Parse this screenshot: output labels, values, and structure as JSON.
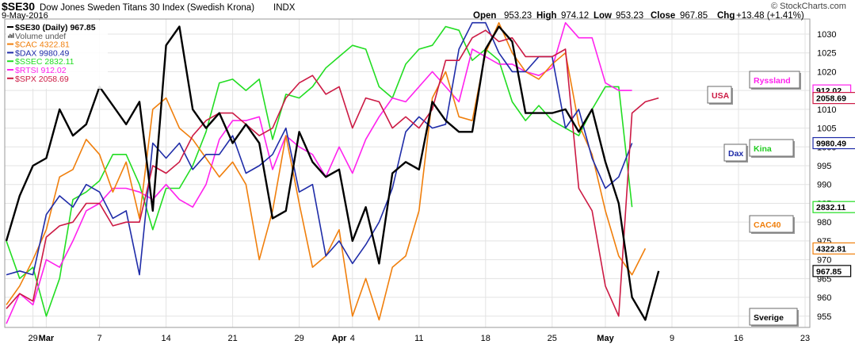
{
  "header": {
    "symbol": "$SE30",
    "name": "Dow Jones Sweden Titans 30 Index (Swedish Krona)",
    "exchange": "INDX",
    "date": "9-May-2016",
    "watermark": "© StockCharts.com",
    "open_label": "Open",
    "open": "953.23",
    "high_label": "High",
    "high": "974.12",
    "low_label": "Low",
    "low": "953.23",
    "close_label": "Close",
    "close": "967.85",
    "chg_label": "Chg",
    "chg": "+13.48 (+1.41%)"
  },
  "chart_data": {
    "type": "line",
    "ylim": [
      952,
      1034
    ],
    "yticks": [
      955,
      960,
      965,
      970,
      975,
      980,
      985,
      990,
      995,
      1000,
      1005,
      1010,
      1015,
      1020,
      1025,
      1030
    ],
    "x_count": 64,
    "x_ticks": [
      {
        "i": 2,
        "label": "29"
      },
      {
        "i": 3,
        "label": "Mar",
        "bold": true
      },
      {
        "i": 7,
        "label": "7"
      },
      {
        "i": 12,
        "label": "14"
      },
      {
        "i": 17,
        "label": "21"
      },
      {
        "i": 22,
        "label": "29"
      },
      {
        "i": 25,
        "label": "Apr",
        "bold": true
      },
      {
        "i": 26,
        "label": "4"
      },
      {
        "i": 31,
        "label": "11"
      },
      {
        "i": 36,
        "label": "18"
      },
      {
        "i": 41,
        "label": "25"
      },
      {
        "i": 45,
        "label": "May",
        "bold": true
      },
      {
        "i": 50,
        "label": "9"
      },
      {
        "i": 55,
        "label": "16"
      },
      {
        "i": 60,
        "label": "23"
      }
    ],
    "series": [
      {
        "name": "$SE30 (Daily) 967.85",
        "color": "#000000",
        "tag": "967.85",
        "width": 2.4,
        "values": [
          975,
          987,
          995,
          997,
          1010,
          1003,
          1006,
          1016,
          1011,
          1006,
          1012,
          983,
          1027,
          1032,
          1010,
          1005,
          1009,
          1001,
          1006,
          1001,
          981,
          983,
          1004,
          996,
          992,
          994,
          975,
          984,
          969,
          993,
          996,
          994,
          1012,
          1007,
          1004,
          1004,
          1026,
          1032,
          1028,
          1009,
          1009,
          1009,
          1010,
          1004,
          1010,
          996,
          985,
          960,
          954,
          967
        ]
      },
      {
        "name": "Volume undef",
        "color": "#555555",
        "icon": "volume-bars"
      },
      {
        "name": "$CAC 4322.81",
        "color": "#f07f0c",
        "tag": "4322.81",
        "width": 1.6,
        "values": [
          958,
          963,
          970,
          978,
          992,
          994,
          1002,
          998,
          988,
          996,
          981,
          1010,
          1013,
          1005,
          1002,
          997,
          992,
          996,
          990,
          970,
          983,
          1003,
          985,
          968,
          971,
          978,
          955,
          965,
          954,
          968,
          971,
          983,
          1013,
          1020,
          1008,
          1007,
          1025,
          1033,
          1025,
          1020,
          1018,
          1022,
          1025,
          1006,
          998,
          983,
          971,
          966,
          973
        ]
      },
      {
        "name": "$DAX 9980.49",
        "color": "#1f2ca8",
        "tag": "9980.49",
        "width": 1.6,
        "values": [
          966,
          967,
          966,
          982,
          987,
          984,
          990,
          988,
          981,
          983,
          966,
          1001,
          997,
          1001,
          994,
          998,
          998,
          1003,
          993,
          995,
          998,
          1005,
          988,
          990,
          971,
          975,
          969,
          974,
          980,
          989,
          1004,
          1008,
          1005,
          1006,
          1026,
          1033,
          1033,
          1025,
          1020,
          1020,
          1024,
          1024,
          1005,
          1010,
          997,
          989,
          992,
          1001
        ]
      },
      {
        "name": "$SSEC 2832.11",
        "color": "#22dd22",
        "tag": "2832.11",
        "width": 1.6,
        "values": [
          975,
          965,
          968,
          955,
          965,
          986,
          988,
          991,
          998,
          998,
          990,
          978,
          989,
          989,
          995,
          1004,
          1017,
          1018,
          1015,
          1018,
          1002,
          1014,
          1013,
          1016,
          1021,
          1024,
          1027,
          1026,
          1016,
          1013,
          1022,
          1026,
          1027,
          1032,
          1031,
          1023,
          1026,
          1023,
          1012,
          1007,
          1011,
          1007,
          1005,
          1003,
          1010,
          1016,
          1016,
          984
        ]
      },
      {
        "name": "$RTSI 912.02",
        "color": "#ff22ee",
        "tag": "912.02",
        "width": 1.6,
        "values": [
          953,
          961,
          958,
          970,
          968,
          975,
          983,
          985,
          989,
          989,
          988,
          986,
          990,
          986,
          984,
          990,
          1002,
          1007,
          1007,
          1008,
          994,
          1003,
          1000,
          998,
          992,
          1000,
          993,
          1002,
          1008,
          1013,
          1012,
          1016,
          1020,
          1016,
          1012,
          1026,
          1024,
          1022,
          1022,
          1020,
          1019,
          1021,
          1033,
          1029,
          1029,
          1017,
          1015,
          1015
        ]
      },
      {
        "name": "$SPX 2058.69",
        "color": "#cc1a44",
        "tag": "2058.69",
        "width": 1.6,
        "values": [
          957,
          961,
          959,
          976,
          979,
          980,
          985,
          985,
          979,
          980,
          980,
          995,
          993,
          996,
          1003,
          1007,
          1009,
          1009,
          1006,
          1003,
          1005,
          1013,
          1017,
          1019,
          1014,
          1016,
          1005,
          1013,
          1012,
          1005,
          1008,
          1005,
          1010,
          1023,
          1023,
          1029,
          1031,
          1028,
          1029,
          1024,
          1024,
          1024,
          1026,
          989,
          983,
          963,
          955,
          1009,
          1012,
          1013
        ]
      }
    ],
    "annotations": [
      {
        "text": "Ryssland",
        "color": "#ff22ee"
      },
      {
        "text": "USA",
        "color": "#cc1a44"
      },
      {
        "text": "Dax",
        "color": "#1f2ca8"
      },
      {
        "text": "Kina",
        "color": "#22cc22"
      },
      {
        "text": "CAC40",
        "color": "#f07f0c"
      },
      {
        "text": "Sverige",
        "color": "#000000"
      }
    ]
  }
}
